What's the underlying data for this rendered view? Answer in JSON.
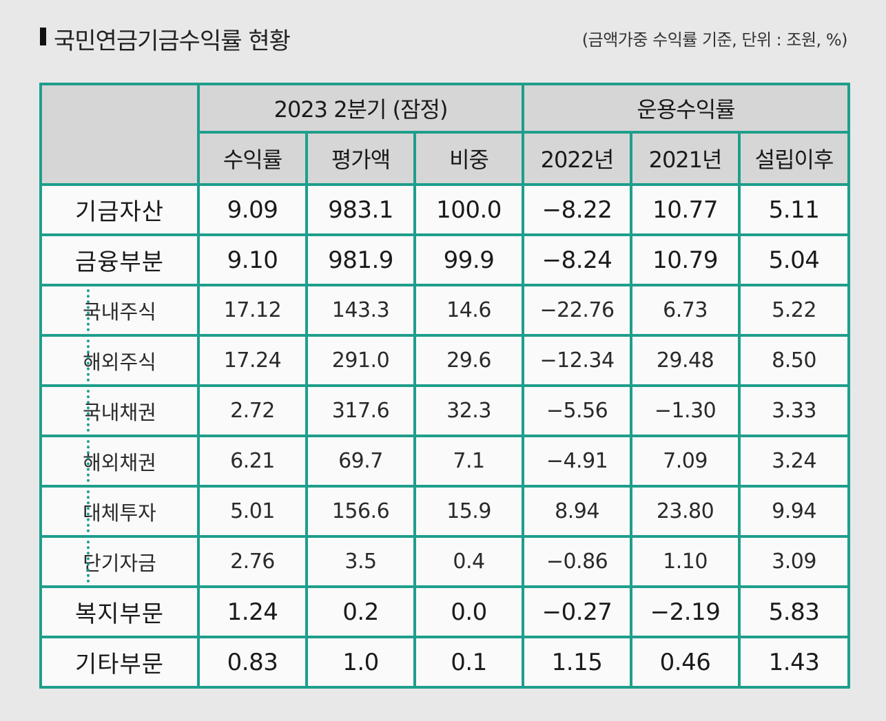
{
  "header": {
    "title": "국민연금기금수익률 현황",
    "note": "(금액가중 수익률 기준, 단위 : 조원, %)"
  },
  "chart_data": {
    "type": "table",
    "group_headers": [
      "2023 2분기 (잠정)",
      "운용수익률"
    ],
    "columns": [
      "수익률",
      "평가액",
      "비중",
      "2022년",
      "2021년",
      "설립이후"
    ],
    "rows": [
      {
        "label": "기금자산",
        "level": 0,
        "values": [
          "9.09",
          "983.1",
          "100.0",
          "−8.22",
          "10.77",
          "5.11"
        ]
      },
      {
        "label": "금융부분",
        "level": 0,
        "values": [
          "9.10",
          "981.9",
          "99.9",
          "−8.24",
          "10.79",
          "5.04"
        ]
      },
      {
        "label": "국내주식",
        "level": 1,
        "values": [
          "17.12",
          "143.3",
          "14.6",
          "−22.76",
          "6.73",
          "5.22"
        ]
      },
      {
        "label": "해외주식",
        "level": 1,
        "values": [
          "17.24",
          "291.0",
          "29.6",
          "−12.34",
          "29.48",
          "8.50"
        ]
      },
      {
        "label": "국내채권",
        "level": 1,
        "values": [
          "2.72",
          "317.6",
          "32.3",
          "−5.56",
          "−1.30",
          "3.33"
        ]
      },
      {
        "label": "해외채권",
        "level": 1,
        "values": [
          "6.21",
          "69.7",
          "7.1",
          "−4.91",
          "7.09",
          "3.24"
        ]
      },
      {
        "label": "대체투자",
        "level": 1,
        "values": [
          "5.01",
          "156.6",
          "15.9",
          "8.94",
          "23.80",
          "9.94"
        ]
      },
      {
        "label": "단기자금",
        "level": 1,
        "values": [
          "2.76",
          "3.5",
          "0.4",
          "−0.86",
          "1.10",
          "3.09"
        ]
      },
      {
        "label": "복지부문",
        "level": 0,
        "values": [
          "1.24",
          "0.2",
          "0.0",
          "−0.27",
          "−2.19",
          "5.83"
        ]
      },
      {
        "label": "기타부문",
        "level": 0,
        "values": [
          "0.83",
          "1.0",
          "0.1",
          "1.15",
          "0.46",
          "1.43"
        ]
      }
    ]
  },
  "colors": {
    "border": "#1f9e8c",
    "header_bg": "#d6d6d6",
    "cell_bg": "#fafafa",
    "page_bg": "#e8e8e8"
  }
}
